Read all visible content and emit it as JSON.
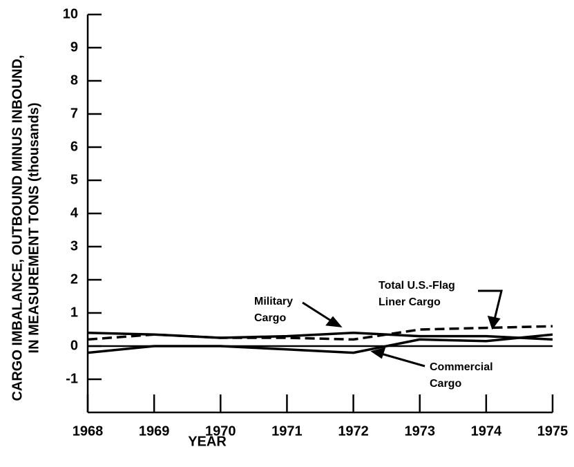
{
  "chart_data": {
    "type": "line",
    "y_label": [
      "CARGO IMBALANCE, OUTBOUND MINUS INBOUND,",
      "IN MEASUREMENT TONS (thousands)"
    ],
    "x_label": "YEAR",
    "x": [
      1968,
      1969,
      1970,
      1971,
      1972,
      1973,
      1974,
      1975
    ],
    "xlim": [
      1968,
      1975
    ],
    "xticks": [
      1968,
      1969,
      1970,
      1971,
      1972,
      1973,
      1974,
      1975
    ],
    "ylim": [
      -2,
      10
    ],
    "yticks": [
      -1,
      0,
      1,
      2,
      3,
      4,
      5,
      6,
      7,
      8,
      9,
      10
    ],
    "series": [
      {
        "name": [
          "Military",
          "Cargo"
        ],
        "color": "#000000",
        "dash": false,
        "values": [
          0.4,
          0.35,
          0.25,
          0.3,
          0.4,
          0.3,
          0.3,
          0.2
        ]
      },
      {
        "name": [
          "Commercial",
          "Cargo"
        ],
        "color": "#000000",
        "dash": false,
        "values": [
          -0.2,
          0,
          0,
          -0.1,
          -0.2,
          0.2,
          0.15,
          0.35
        ]
      },
      {
        "name": [
          "Total U.S.-Flag",
          "Liner Cargo"
        ],
        "color": "#000000",
        "dash": true,
        "values": [
          0.2,
          0.35,
          0.25,
          0.25,
          0.2,
          0.5,
          0.55,
          0.6
        ]
      }
    ]
  }
}
